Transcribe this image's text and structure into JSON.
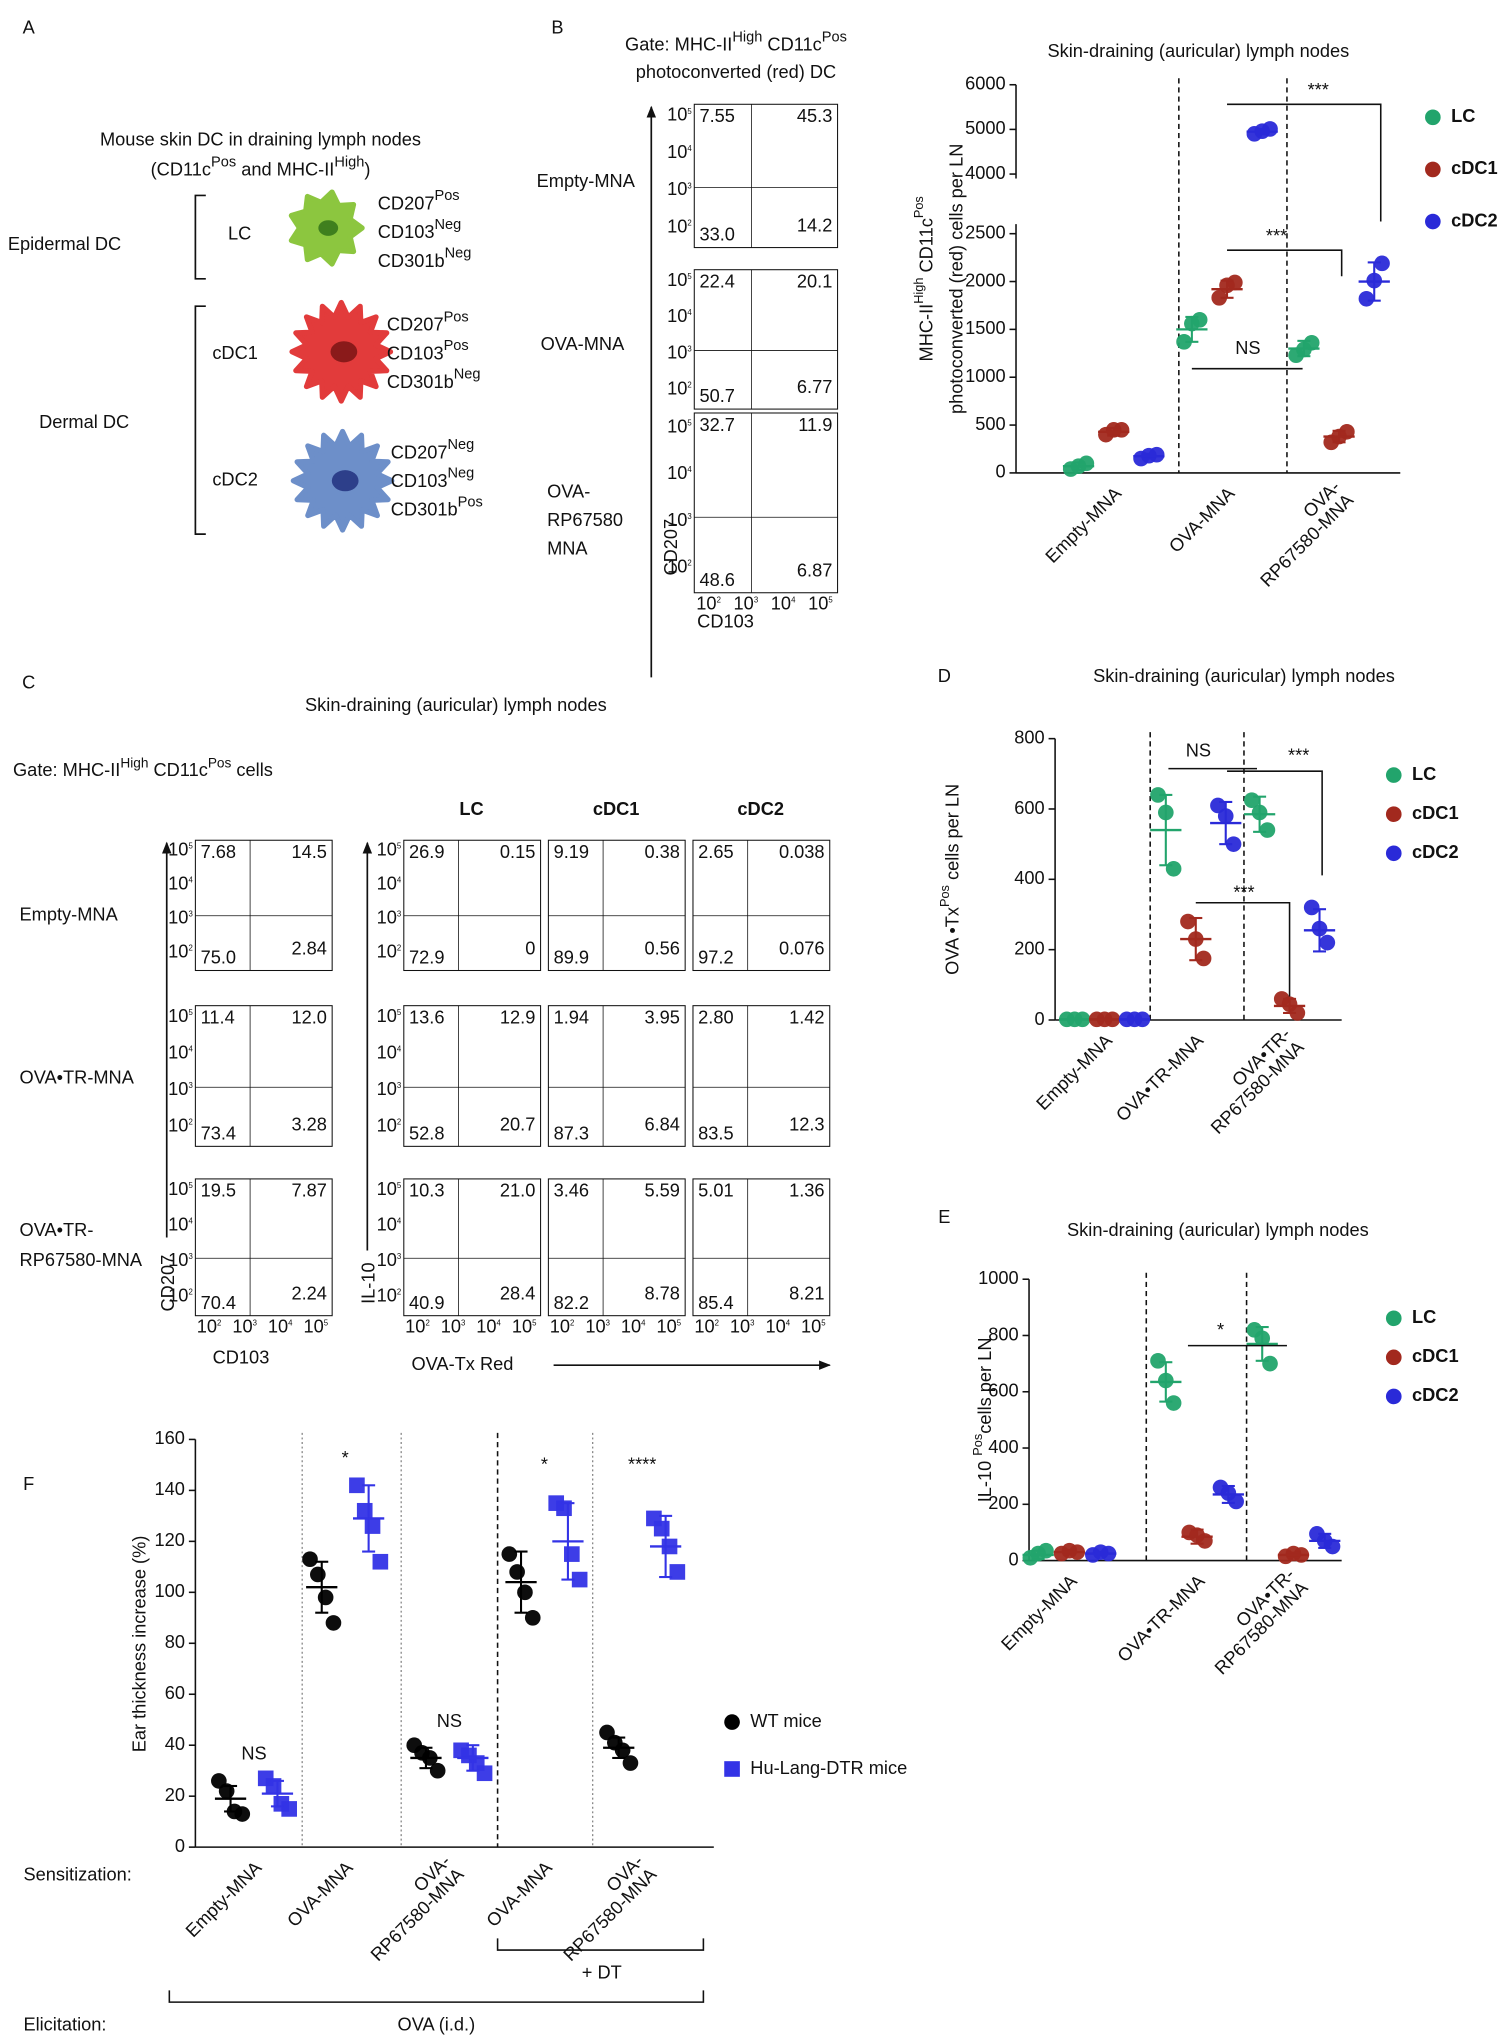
{
  "panel_labels": [
    "A",
    "B",
    "C",
    "D",
    "E",
    "F"
  ],
  "panel_a": {
    "title": [
      "Mouse skin DC in draining lymph nodes"
    ],
    "subtitle": [
      "(CD11c",
      {
        "sup": "Pos"
      },
      " and MHC-II",
      {
        "sup": "High"
      },
      ")"
    ],
    "groups": [
      "Epidermal DC",
      "Dermal DC"
    ],
    "cells": [
      {
        "name": "LC",
        "markers": [
          [
            "CD207",
            {
              "sup": "Pos"
            }
          ],
          [
            "CD103",
            {
              "sup": "Neg"
            }
          ],
          [
            "CD301b",
            {
              "sup": "Neg"
            }
          ]
        ]
      },
      {
        "name": "cDC1",
        "markers": [
          [
            "CD207",
            {
              "sup": "Pos"
            }
          ],
          [
            "CD103",
            {
              "sup": "Pos"
            }
          ],
          [
            "CD301b",
            {
              "sup": "Neg"
            }
          ]
        ]
      },
      {
        "name": "cDC2",
        "markers": [
          [
            "CD207",
            {
              "sup": "Neg"
            }
          ],
          [
            "CD103",
            {
              "sup": "Neg"
            }
          ],
          [
            "CD301b",
            {
              "sup": "Pos"
            }
          ]
        ]
      }
    ]
  },
  "flow_axis": {
    "base": "10",
    "exponents": [
      "2",
      "3",
      "4",
      "5"
    ]
  },
  "panel_b_flow": {
    "gate": [
      [
        "Gate: MHC-II",
        {
          "sup": "High"
        },
        " CD11c",
        {
          "sup": "Pos"
        }
      ],
      [
        "photoconverted (red) DC"
      ]
    ],
    "rows": [
      [
        "Empty-MNA"
      ],
      [
        "OVA-MNA"
      ],
      [
        "OVA-",
        "RP67580",
        "MNA"
      ]
    ],
    "y_axis": "CD207",
    "x_axis": "CD103",
    "quadrants": [
      [
        "7.55",
        "45.3",
        "33.0",
        "14.2"
      ],
      [
        "22.4",
        "20.1",
        "50.7",
        "6.77"
      ],
      [
        "32.7",
        "11.9",
        "48.6",
        "6.87"
      ]
    ]
  },
  "panel_c": {
    "title": "Skin-draining (auricular) lymph nodes",
    "gate": [
      "Gate: MHC-II",
      {
        "sup": "High"
      },
      " CD11c",
      {
        "sup": "Pos"
      },
      " cells"
    ],
    "rows": [
      [
        "Empty-MNA"
      ],
      [
        "OVA•TR-MNA"
      ],
      [
        "OVA•TR-",
        "RP67580-MNA"
      ]
    ],
    "left": {
      "y_axis": "CD207",
      "x_axis": "CD103",
      "quadrants": [
        [
          "7.68",
          "14.5",
          "75.0",
          "2.84"
        ],
        [
          "11.4",
          "12.0",
          "73.4",
          "3.28"
        ],
        [
          "19.5",
          "7.87",
          "70.4",
          "2.24"
        ]
      ]
    },
    "columns": [
      "LC",
      "cDC1",
      "cDC2"
    ],
    "right": {
      "y_axis": "IL-10",
      "x_axis": "OVA-Tx Red",
      "quadrants": [
        [
          [
            "26.9",
            "0.15",
            "72.9",
            "0"
          ],
          [
            "9.19",
            "0.38",
            "89.9",
            "0.56"
          ],
          [
            "2.65",
            "0.038",
            "97.2",
            "0.076"
          ]
        ],
        [
          [
            "13.6",
            "12.9",
            "52.8",
            "20.7"
          ],
          [
            "1.94",
            "3.95",
            "87.3",
            "6.84"
          ],
          [
            "2.80",
            "1.42",
            "83.5",
            "12.3"
          ]
        ],
        [
          [
            "10.3",
            "21.0",
            "40.9",
            "28.4"
          ],
          [
            "3.46",
            "5.59",
            "82.2",
            "8.78"
          ],
          [
            "5.01",
            "1.36",
            "85.4",
            "8.21"
          ]
        ]
      ]
    }
  },
  "chart_data": [
    {
      "type": "dot",
      "title": "Skin-draining (auricular) lymph nodes",
      "ylabel": [
        [
          "MHC-II",
          {
            "sup": "High"
          },
          " CD11c",
          {
            "sup": "Pos"
          }
        ],
        [
          "photoconverted  (red)  cells per LN"
        ]
      ],
      "categories": [
        "Empty-MNA",
        "OVA-MNA",
        "OVA-RP67580-MNA"
      ],
      "ylim": [
        0,
        6000
      ],
      "ybreak": [
        2600,
        3900
      ],
      "yticks": [
        0,
        500,
        1000,
        1500,
        2000,
        2500,
        4000,
        5000,
        6000
      ],
      "series": [
        {
          "name": "LC",
          "color": "#22a46c",
          "marker": "circle",
          "values": [
            70,
            1500,
            1300
          ],
          "errors": [
            40,
            130,
            80
          ],
          "points": [
            [
              40,
              70,
              100
            ],
            [
              1370,
              1560,
              1600
            ],
            [
              1230,
              1290,
              1360
            ]
          ]
        },
        {
          "name": "cDC1",
          "color": "#a2291e",
          "marker": "circle",
          "values": [
            430,
            1920,
            380
          ],
          "errors": [
            40,
            90,
            60
          ],
          "points": [
            [
              400,
              450,
              450
            ],
            [
              1830,
              1960,
              1990
            ],
            [
              320,
              380,
              430
            ]
          ]
        },
        {
          "name": "cDC2",
          "color": "#2a2ad8",
          "marker": "circle",
          "values": [
            175,
            4950,
            2000
          ],
          "errors": [
            25,
            60,
            200
          ],
          "points": [
            [
              150,
              180,
              190
            ],
            [
              4900,
              4960,
              5010
            ],
            [
              1820,
              2010,
              2190
            ]
          ]
        }
      ],
      "annotations": [
        "***",
        "***",
        "NS"
      ]
    },
    {
      "type": "dot",
      "title": "Skin-draining (auricular) lymph nodes",
      "ylabel": [
        [
          "OVA •Tx",
          {
            "sup": "Pos"
          },
          " cells per LN"
        ]
      ],
      "categories": [
        "Empty-MNA",
        "OVA•TR-MNA",
        "OVA•TR-RP67580-MNA"
      ],
      "ylim": [
        0,
        800
      ],
      "yticks": [
        0,
        200,
        400,
        600,
        800
      ],
      "series": [
        {
          "name": "LC",
          "color": "#22a46c",
          "marker": "circle",
          "values": [
            2,
            540,
            585
          ],
          "errors": [
            2,
            100,
            50
          ],
          "points": [
            [
              2,
              2,
              2
            ],
            [
              640,
              590,
              430
            ],
            [
              625,
              590,
              540
            ]
          ]
        },
        {
          "name": "cDC1",
          "color": "#a2291e",
          "marker": "circle",
          "values": [
            2,
            230,
            40
          ],
          "errors": [
            2,
            60,
            20
          ],
          "points": [
            [
              2,
              2,
              2
            ],
            [
              280,
              230,
              175
            ],
            [
              60,
              45,
              20
            ]
          ]
        },
        {
          "name": "cDC2",
          "color": "#2a2ad8",
          "marker": "circle",
          "values": [
            2,
            560,
            255
          ],
          "errors": [
            2,
            60,
            60
          ],
          "points": [
            [
              2,
              2,
              2
            ],
            [
              610,
              580,
              500
            ],
            [
              320,
              260,
              220
            ]
          ]
        }
      ],
      "annotations": [
        "NS",
        "***",
        "***"
      ]
    },
    {
      "type": "dot",
      "title": "Skin-draining (auricular) lymph nodes",
      "ylabel": [
        [
          "IL-10 ",
          {
            "sup": "Pos"
          },
          "cells per LN"
        ]
      ],
      "categories": [
        "Empty-MNA",
        "OVA•TR-MNA",
        "OVA•TR-RP67580-MNA"
      ],
      "ylim": [
        0,
        1000
      ],
      "yticks": [
        0,
        200,
        400,
        600,
        800,
        1000
      ],
      "series": [
        {
          "name": "LC",
          "color": "#22a46c",
          "marker": "circle",
          "values": [
            20,
            635,
            770
          ],
          "errors": [
            15,
            70,
            60
          ],
          "points": [
            [
              10,
              25,
              35
            ],
            [
              710,
              640,
              560
            ],
            [
              820,
              790,
              700
            ]
          ]
        },
        {
          "name": "cDC1",
          "color": "#a2291e",
          "marker": "circle",
          "values": [
            30,
            85,
            20
          ],
          "errors": [
            8,
            25,
            8
          ],
          "points": [
            [
              25,
              35,
              30
            ],
            [
              100,
              90,
              70
            ],
            [
              15,
              25,
              20
            ]
          ]
        },
        {
          "name": "cDC2",
          "color": "#2a2ad8",
          "marker": "circle",
          "values": [
            25,
            235,
            70
          ],
          "errors": [
            6,
            30,
            25
          ],
          "points": [
            [
              20,
              30,
              25
            ],
            [
              260,
              240,
              210
            ],
            [
              95,
              70,
              50
            ]
          ]
        }
      ],
      "annotations": [
        "*"
      ]
    },
    {
      "type": "dot",
      "ylabel": [
        [
          "Ear thickness increase (%)"
        ]
      ],
      "categories": [
        "Empty-MNA",
        "OVA-MNA",
        "OVA-RP67580-MNA",
        "OVA-MNA",
        "OVA-RP67580-MNA"
      ],
      "ylim": [
        0,
        160
      ],
      "yticks": [
        0,
        20,
        40,
        60,
        80,
        100,
        120,
        140,
        160
      ],
      "series": [
        {
          "name": "WT mice",
          "color": "#000000",
          "marker": "circle",
          "values": [
            19,
            102,
            35,
            104,
            39
          ],
          "errors": [
            5,
            10,
            4,
            12,
            4
          ],
          "points": [
            [
              26,
              22,
              14,
              13
            ],
            [
              113,
              107,
              98,
              88
            ],
            [
              40,
              37,
              35,
              30
            ],
            [
              115,
              108,
              100,
              90
            ],
            [
              45,
              41,
              38,
              33
            ]
          ]
        },
        {
          "name": "Hu-Lang-DTR mice",
          "color": "#3333e6",
          "marker": "square",
          "values": [
            21,
            129,
            35,
            120,
            118
          ],
          "errors": [
            5,
            13,
            5,
            15,
            12
          ],
          "points": [
            [
              27,
              24,
              17,
              15
            ],
            [
              142,
              132,
              126,
              112
            ],
            [
              38,
              36,
              33,
              29
            ],
            [
              135,
              133,
              115,
              105
            ],
            [
              129,
              125,
              118,
              108
            ]
          ]
        }
      ],
      "annotations": [
        "NS",
        "*",
        "NS",
        "*",
        "****"
      ],
      "row_labels": [
        "Sensitization:",
        "Elicitation:"
      ],
      "group_labels": [
        "OVA (i.d.)",
        "+ DT"
      ]
    }
  ]
}
